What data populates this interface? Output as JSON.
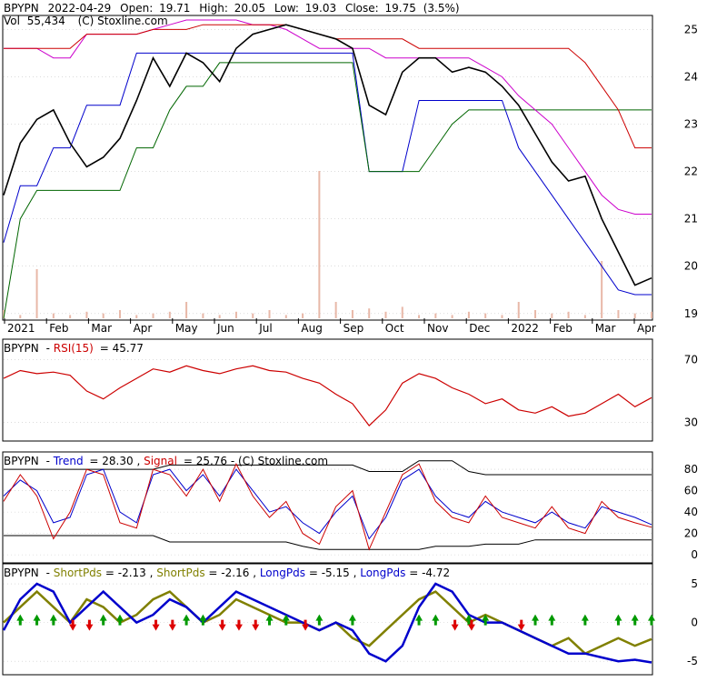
{
  "header": {
    "ticker": "BPYPN",
    "date": "2022-04-29",
    "open_label": "Open:",
    "open": "19.71",
    "high_label": "High:",
    "high": "20.05",
    "low_label": "Low:",
    "low": "19.03",
    "close_label": "Close:",
    "close": "19.75",
    "change": "(3.5%)",
    "vol_label": "Vol",
    "vol": "55,434",
    "copyright": "(C) Stoxline.com"
  },
  "colors": {
    "price": "#000000",
    "blue": "#0000cc",
    "green": "#006600",
    "red": "#cc0000",
    "magenta": "#cc00cc",
    "olive": "#808000",
    "volume": "#e8b8a8",
    "grid": "#c8c8c8",
    "up_arrow": "#009900",
    "down_arrow": "#dd0000"
  },
  "chart_data": [
    {
      "type": "line",
      "panel": "price",
      "y_ticks": [
        19,
        20,
        21,
        22,
        23,
        24,
        25
      ],
      "ylim": [
        18.9,
        25.2
      ],
      "x_labels": [
        "2021",
        "Feb",
        "Mar",
        "Apr",
        "May",
        "Jun",
        "Jul",
        "Aug",
        "Sep",
        "Oct",
        "Nov",
        "Dec",
        "2022",
        "Feb",
        "Mar",
        "Apr"
      ],
      "close": [
        21.5,
        22.6,
        23.1,
        23.3,
        22.6,
        22.1,
        22.3,
        22.7,
        23.5,
        24.4,
        23.8,
        24.5,
        24.3,
        23.9,
        24.6,
        24.9,
        25.0,
        25.1,
        25.0,
        24.9,
        24.8,
        24.6,
        23.4,
        23.2,
        24.1,
        24.4,
        24.4,
        24.1,
        24.2,
        24.1,
        23.8,
        23.4,
        22.8,
        22.2,
        21.8,
        21.9,
        21.0,
        20.3,
        19.6,
        19.75
      ],
      "series": [
        {
          "name": "",
          "color": "blue",
          "values": [
            20.5,
            21.7,
            21.7,
            22.5,
            22.5,
            23.4,
            23.4,
            23.4,
            24.5,
            24.5,
            24.5,
            24.5,
            24.5,
            24.5,
            24.5,
            24.5,
            24.5,
            24.5,
            24.5,
            24.5,
            24.5,
            24.5,
            22.0,
            22.0,
            22.0,
            23.5,
            23.5,
            23.5,
            23.5,
            23.5,
            23.5,
            22.5,
            22.0,
            21.5,
            21.0,
            20.5,
            20.0,
            19.5,
            19.4,
            19.4
          ]
        },
        {
          "name": "",
          "color": "green",
          "values": [
            18.9,
            21.0,
            21.6,
            21.6,
            21.6,
            21.6,
            21.6,
            21.6,
            22.5,
            22.5,
            23.3,
            23.8,
            23.8,
            24.3,
            24.3,
            24.3,
            24.3,
            24.3,
            24.3,
            24.3,
            24.3,
            24.3,
            22.0,
            22.0,
            22.0,
            22.0,
            22.5,
            23.0,
            23.3,
            23.3,
            23.3,
            23.3,
            23.3,
            23.3,
            23.3,
            23.3,
            23.3,
            23.3,
            23.3,
            23.3
          ]
        },
        {
          "name": "",
          "color": "magenta",
          "values": [
            24.6,
            24.6,
            24.6,
            24.4,
            24.4,
            24.9,
            24.9,
            24.9,
            24.9,
            25.0,
            25.1,
            25.2,
            25.2,
            25.2,
            25.2,
            25.1,
            25.1,
            25.0,
            24.8,
            24.6,
            24.6,
            24.6,
            24.6,
            24.4,
            24.4,
            24.4,
            24.4,
            24.4,
            24.4,
            24.2,
            24.0,
            23.6,
            23.3,
            23.0,
            22.5,
            22.0,
            21.5,
            21.2,
            21.1,
            21.1
          ]
        },
        {
          "name": "",
          "color": "red",
          "values": [
            24.6,
            24.6,
            24.6,
            24.6,
            24.6,
            24.9,
            24.9,
            24.9,
            24.9,
            25.0,
            25.0,
            25.0,
            25.1,
            25.1,
            25.1,
            25.1,
            25.1,
            25.1,
            25.0,
            24.9,
            24.8,
            24.8,
            24.8,
            24.8,
            24.8,
            24.6,
            24.6,
            24.6,
            24.6,
            24.6,
            24.6,
            24.6,
            24.6,
            24.6,
            24.6,
            24.3,
            23.8,
            23.3,
            22.5,
            22.5
          ]
        }
      ],
      "volume": [
        0.05,
        0.02,
        0.3,
        0.03,
        0.02,
        0.04,
        0.03,
        0.05,
        0.02,
        0.03,
        0.04,
        0.1,
        0.03,
        0.02,
        0.04,
        0.03,
        0.05,
        0.02,
        0.03,
        0.9,
        0.1,
        0.05,
        0.06,
        0.04,
        0.07,
        0.02,
        0.03,
        0.02,
        0.04,
        0.03,
        0.02,
        0.1,
        0.05,
        0.03,
        0.04,
        0.02,
        0.35,
        0.05,
        0.03,
        0.04
      ]
    },
    {
      "type": "line",
      "panel": "rsi",
      "title_series": "RSI(15)",
      "value": "45.77",
      "y_ticks": [
        30,
        70
      ],
      "ylim": [
        20,
        80
      ],
      "values": [
        58,
        63,
        61,
        62,
        60,
        50,
        45,
        52,
        58,
        64,
        62,
        66,
        63,
        61,
        64,
        66,
        63,
        62,
        58,
        55,
        48,
        42,
        28,
        38,
        55,
        61,
        58,
        52,
        48,
        42,
        45,
        38,
        36,
        40,
        34,
        36,
        42,
        48,
        40,
        45.77
      ]
    },
    {
      "type": "line",
      "panel": "stochastic",
      "trend_label": "Trend",
      "trend_value": "28.30",
      "signal_label": "Signal",
      "signal_value": "25.76",
      "y_ticks": [
        0,
        20,
        40,
        60,
        80
      ],
      "ylim": [
        -5,
        92
      ],
      "trend": [
        55,
        70,
        60,
        30,
        35,
        75,
        80,
        40,
        30,
        75,
        80,
        60,
        75,
        55,
        80,
        60,
        40,
        45,
        30,
        20,
        40,
        55,
        15,
        35,
        70,
        80,
        55,
        40,
        35,
        50,
        40,
        35,
        30,
        40,
        30,
        25,
        45,
        40,
        35,
        28.3
      ],
      "signal": [
        50,
        75,
        55,
        15,
        40,
        80,
        75,
        30,
        25,
        80,
        75,
        55,
        80,
        50,
        85,
        55,
        35,
        50,
        20,
        10,
        45,
        60,
        5,
        40,
        75,
        85,
        50,
        35,
        30,
        55,
        35,
        30,
        25,
        45,
        25,
        20,
        50,
        35,
        30,
        25.76
      ],
      "upper_band": [
        80,
        80,
        80,
        80,
        80,
        80,
        80,
        80,
        80,
        80,
        84,
        84,
        84,
        84,
        84,
        84,
        84,
        84,
        84,
        84,
        84,
        84,
        78,
        78,
        78,
        88,
        88,
        88,
        78,
        75,
        75,
        75,
        75,
        75,
        75,
        75,
        75,
        75,
        75,
        75
      ],
      "lower_band": [
        18,
        18,
        18,
        18,
        18,
        18,
        18,
        18,
        18,
        18,
        12,
        12,
        12,
        12,
        12,
        12,
        12,
        12,
        8,
        5,
        5,
        5,
        5,
        5,
        5,
        5,
        8,
        8,
        8,
        10,
        10,
        10,
        14,
        14,
        14,
        14,
        14,
        14,
        14,
        14
      ]
    },
    {
      "type": "line",
      "panel": "pds",
      "labels": [
        {
          "text": "ShortPds",
          "value": "-2.13",
          "color": "olive"
        },
        {
          "text": "ShortPds",
          "value": "-2.16",
          "color": "olive"
        },
        {
          "text": "LongPds",
          "value": "-5.15",
          "color": "blue"
        },
        {
          "text": "LongPds",
          "value": "-4.72",
          "color": "blue"
        }
      ],
      "y_ticks": [
        -5,
        0,
        5
      ],
      "ylim": [
        -6.5,
        7
      ],
      "short": [
        0,
        2,
        4,
        2,
        0,
        3,
        2,
        0,
        1,
        3,
        4,
        2,
        0,
        1,
        3,
        2,
        1,
        0,
        0,
        -1,
        0,
        -2,
        -3,
        -1,
        1,
        3,
        4,
        2,
        0,
        1,
        0,
        -1,
        -2,
        -3,
        -2,
        -4,
        -3,
        -2,
        -3,
        -2.13
      ],
      "long": [
        -1,
        3,
        5,
        4,
        0,
        2,
        4,
        2,
        0,
        1,
        3,
        2,
        0,
        2,
        4,
        3,
        2,
        1,
        0,
        -1,
        0,
        -1,
        -4,
        -5,
        -3,
        2,
        5,
        4,
        1,
        0,
        0,
        -1,
        -2,
        -3,
        -4,
        -4,
        -4.5,
        -5,
        -4.8,
        -5.15
      ],
      "buy_arrows": [
        1,
        2,
        3,
        6,
        7,
        11,
        12,
        16,
        17,
        19,
        21,
        25,
        26,
        28,
        29,
        32,
        33,
        35,
        37,
        38,
        39
      ],
      "sell_arrows": [
        4,
        5,
        9,
        10,
        13,
        14,
        15,
        18,
        27,
        28,
        31
      ]
    }
  ]
}
